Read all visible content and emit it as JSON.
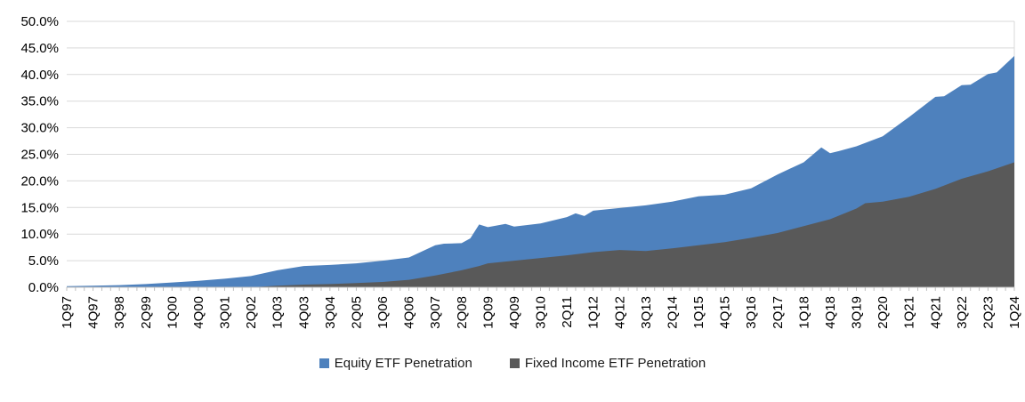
{
  "chart_data": {
    "type": "area",
    "title": "",
    "xlabel": "",
    "ylabel": "",
    "grid": true,
    "grid_color": "#d9d9d9",
    "axis_color": "#bfbfbf",
    "text_color": "#000000",
    "legend_position": "bottom-center",
    "y_axis": {
      "min": 0,
      "max": 50,
      "tick_step": 5,
      "tick_labels": [
        "0.0%",
        "5.0%",
        "10.0%",
        "15.0%",
        "20.0%",
        "25.0%",
        "30.0%",
        "35.0%",
        "40.0%",
        "45.0%",
        "50.0%"
      ]
    },
    "x_axis": {
      "unit": "quarter",
      "total_points": 109,
      "label_every": 3,
      "first_label": "1Q97",
      "last_label": "1Q24",
      "tick_labels": [
        "1Q97",
        "4Q97",
        "3Q98",
        "2Q99",
        "1Q00",
        "4Q00",
        "3Q01",
        "2Q02",
        "1Q03",
        "4Q03",
        "3Q04",
        "2Q05",
        "1Q06",
        "4Q06",
        "3Q07",
        "2Q08",
        "1Q09",
        "4Q09",
        "3Q10",
        "2Q11",
        "1Q12",
        "4Q12",
        "3Q13",
        "2Q14",
        "1Q15",
        "4Q15",
        "3Q16",
        "2Q17",
        "1Q18",
        "4Q18",
        "3Q19",
        "2Q20",
        "1Q21",
        "4Q21",
        "3Q22",
        "2Q23",
        "1Q24"
      ]
    },
    "series": [
      {
        "name": "Equity ETF Penetration",
        "color": "#4e81bd",
        "unit": "%",
        "points": [
          [
            0,
            0.2
          ],
          [
            3,
            0.3
          ],
          [
            6,
            0.4
          ],
          [
            9,
            0.6
          ],
          [
            12,
            0.9
          ],
          [
            15,
            1.2
          ],
          [
            18,
            1.6
          ],
          [
            21,
            2.1
          ],
          [
            24,
            3.2
          ],
          [
            27,
            4.0
          ],
          [
            30,
            4.2
          ],
          [
            33,
            4.5
          ],
          [
            36,
            5.0
          ],
          [
            39,
            5.6
          ],
          [
            42,
            7.9
          ],
          [
            43,
            8.2
          ],
          [
            45,
            8.3
          ],
          [
            46,
            9.2
          ],
          [
            47,
            11.8
          ],
          [
            48,
            11.3
          ],
          [
            50,
            11.9
          ],
          [
            51,
            11.4
          ],
          [
            54,
            12.0
          ],
          [
            57,
            13.2
          ],
          [
            58,
            13.9
          ],
          [
            59,
            13.4
          ],
          [
            60,
            14.4
          ],
          [
            63,
            14.9
          ],
          [
            66,
            15.4
          ],
          [
            69,
            16.1
          ],
          [
            72,
            17.1
          ],
          [
            75,
            17.4
          ],
          [
            78,
            18.6
          ],
          [
            81,
            21.2
          ],
          [
            84,
            23.5
          ],
          [
            86,
            26.3
          ],
          [
            87,
            25.2
          ],
          [
            88,
            25.6
          ],
          [
            90,
            26.5
          ],
          [
            93,
            28.4
          ],
          [
            96,
            32.0
          ],
          [
            99,
            35.8
          ],
          [
            100,
            35.9
          ],
          [
            102,
            38.0
          ],
          [
            103,
            38.1
          ],
          [
            105,
            40.1
          ],
          [
            106,
            40.4
          ],
          [
            108,
            43.5
          ]
        ]
      },
      {
        "name": "Fixed Income ETF Penetration",
        "color": "#595959",
        "unit": "%",
        "points": [
          [
            0,
            0.0
          ],
          [
            21,
            0.0
          ],
          [
            24,
            0.3
          ],
          [
            27,
            0.5
          ],
          [
            30,
            0.6
          ],
          [
            33,
            0.8
          ],
          [
            36,
            1.0
          ],
          [
            39,
            1.4
          ],
          [
            42,
            2.2
          ],
          [
            45,
            3.2
          ],
          [
            47,
            4.0
          ],
          [
            48,
            4.5
          ],
          [
            51,
            5.0
          ],
          [
            54,
            5.5
          ],
          [
            57,
            6.0
          ],
          [
            60,
            6.6
          ],
          [
            63,
            7.0
          ],
          [
            66,
            6.8
          ],
          [
            69,
            7.3
          ],
          [
            72,
            7.9
          ],
          [
            75,
            8.5
          ],
          [
            78,
            9.3
          ],
          [
            81,
            10.2
          ],
          [
            84,
            11.5
          ],
          [
            87,
            12.8
          ],
          [
            90,
            14.8
          ],
          [
            91,
            15.8
          ],
          [
            93,
            16.1
          ],
          [
            96,
            17.0
          ],
          [
            99,
            18.5
          ],
          [
            102,
            20.4
          ],
          [
            105,
            21.8
          ],
          [
            108,
            23.5
          ]
        ]
      }
    ]
  },
  "legend": {
    "equity_label": "Equity ETF Penetration",
    "fixed_income_label": "Fixed Income ETF Penetration"
  }
}
